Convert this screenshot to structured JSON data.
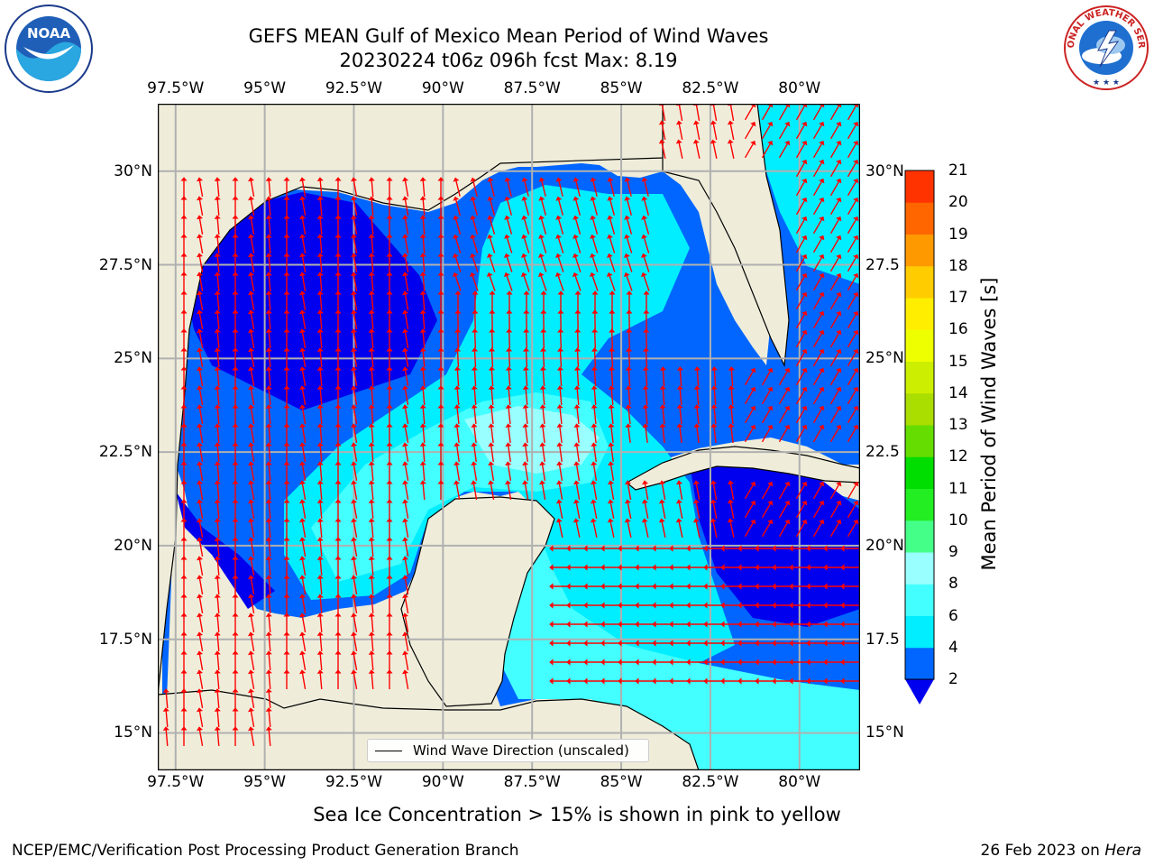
{
  "title": {
    "line1": "GEFS MEAN Gulf of Mexico Mean Period of Wind Waves",
    "line2": "20230224 t06z 096h fcst   Max: 8.19"
  },
  "map": {
    "lon_labels": [
      "97.5°W",
      "95°W",
      "92.5°W",
      "90°W",
      "87.5°W",
      "85°W",
      "82.5°W",
      "80°W"
    ],
    "lon_values": [
      -97.5,
      -95,
      -92.5,
      -90,
      -87.5,
      -85,
      -82.5,
      -80
    ],
    "lat_labels": [
      "30°N",
      "27.5°N",
      "25°N",
      "22.5°N",
      "20°N",
      "17.5°N",
      "15°N"
    ],
    "lat_values": [
      30,
      27.5,
      25,
      22.5,
      20,
      17.5,
      15
    ],
    "right_lat_labels": [
      "30°N",
      "27.5",
      "25°N",
      "22.5",
      "20°N",
      "17.5",
      "15°N"
    ],
    "extent": {
      "lon_min": -98,
      "lon_max": -78.3,
      "lat_min": 14,
      "lat_max": 31.8
    },
    "colors": {
      "land": "#efedda",
      "grid": "#b0b0b0",
      "arrow": "#ff0000",
      "coast": "#000000"
    }
  },
  "legend": {
    "label": "Wind Wave Direction (unscaled)"
  },
  "colorbar": {
    "label": "Mean Period of Wind Waves [s]",
    "ticks": [
      "21",
      "20",
      "19",
      "18",
      "17",
      "16",
      "15",
      "14",
      "13",
      "12",
      "11",
      "10",
      "9",
      "8",
      "6",
      "4",
      "2"
    ],
    "levels": [
      2,
      4,
      6,
      8,
      9,
      10,
      11,
      12,
      13,
      14,
      15,
      16,
      17,
      18,
      19,
      20,
      21
    ],
    "colors": [
      "#0066ff",
      "#00eeff",
      "#44ffff",
      "#99ffff",
      "#44ff88",
      "#22ee22",
      "#00dd00",
      "#66dd00",
      "#aadd00",
      "#ccee00",
      "#eeff00",
      "#ffee00",
      "#ffcc00",
      "#ff9900",
      "#ff6600",
      "#ff3300",
      "#ff0000"
    ],
    "under_color": "#0000ee"
  },
  "field_colors": {
    "lt2": "#0000ee",
    "b2_4": "#0066ff",
    "b4_6": "#00eeff",
    "b6_8": "#44ffff",
    "b8_9": "#99ffff"
  },
  "ice_note": "Sea Ice Concentration > 15% is shown in pink to yellow",
  "footer": {
    "left": "NCEP/EMC/Verification Post Processing Product Generation Branch",
    "right_date": "26 Feb 2023 on ",
    "right_host": "Hera"
  },
  "logos": {
    "noaa_text": "NOAA",
    "nws_text": "NATIONAL WEATHER SERVICE"
  }
}
